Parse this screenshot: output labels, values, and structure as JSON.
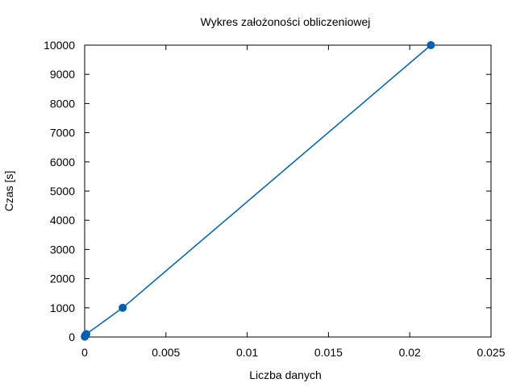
{
  "chart_data": {
    "type": "line",
    "title": "Wykres założoności obliczeniowej",
    "xlabel": "Liczba danych",
    "ylabel": "Czas [s]",
    "xlim": [
      0,
      0.025
    ],
    "ylim": [
      0,
      10000
    ],
    "x_ticks": [
      "0",
      "0.005",
      "0.01",
      "0.015",
      "0.02",
      "0.025"
    ],
    "y_ticks": [
      "0",
      "1000",
      "2000",
      "3000",
      "4000",
      "5000",
      "6000",
      "7000",
      "8000",
      "9000",
      "10000"
    ],
    "grid": false,
    "series": [
      {
        "color": "#0060ad",
        "points": [
          {
            "x": 1e-05,
            "y": 10
          },
          {
            "x": 3e-05,
            "y": 50
          },
          {
            "x": 0.0001,
            "y": 100
          },
          {
            "x": 0.00234,
            "y": 1000
          },
          {
            "x": 0.0213,
            "y": 10000
          }
        ]
      }
    ]
  }
}
